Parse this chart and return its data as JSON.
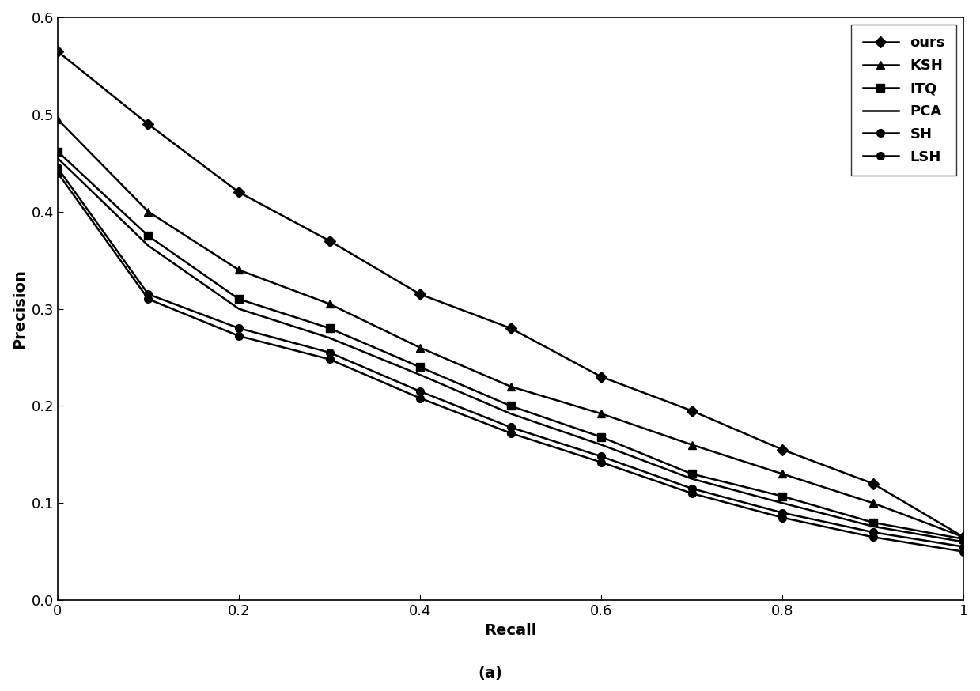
{
  "title": "(a)",
  "xlabel": "Recall",
  "ylabel": "Precision",
  "xlim": [
    0,
    1
  ],
  "ylim": [
    0,
    0.6
  ],
  "series": {
    "ours": {
      "x": [
        0.0,
        0.1,
        0.2,
        0.3,
        0.4,
        0.5,
        0.6,
        0.7,
        0.8,
        0.9,
        1.0
      ],
      "y": [
        0.565,
        0.49,
        0.42,
        0.37,
        0.315,
        0.28,
        0.23,
        0.195,
        0.155,
        0.12,
        0.065
      ],
      "marker": "D",
      "markersize": 7,
      "label": "ours"
    },
    "KSH": {
      "x": [
        0.0,
        0.1,
        0.2,
        0.3,
        0.4,
        0.5,
        0.6,
        0.7,
        0.8,
        0.9,
        1.0
      ],
      "y": [
        0.495,
        0.4,
        0.34,
        0.305,
        0.26,
        0.22,
        0.192,
        0.16,
        0.13,
        0.1,
        0.065
      ],
      "marker": "^",
      "markersize": 7,
      "label": "KSH"
    },
    "ITQ": {
      "x": [
        0.0,
        0.1,
        0.2,
        0.3,
        0.4,
        0.5,
        0.6,
        0.7,
        0.8,
        0.9,
        1.0
      ],
      "y": [
        0.462,
        0.375,
        0.31,
        0.28,
        0.24,
        0.2,
        0.168,
        0.13,
        0.107,
        0.08,
        0.063
      ],
      "marker": "s",
      "markersize": 7,
      "label": "ITQ"
    },
    "PCA": {
      "x": [
        0.0,
        0.1,
        0.2,
        0.3,
        0.4,
        0.5,
        0.6,
        0.7,
        0.8,
        0.9,
        1.0
      ],
      "y": [
        0.455,
        0.365,
        0.3,
        0.27,
        0.232,
        0.192,
        0.16,
        0.125,
        0.1,
        0.076,
        0.06
      ],
      "marker": "None",
      "markersize": 0,
      "label": "PCA"
    },
    "SH": {
      "x": [
        0.0,
        0.1,
        0.2,
        0.3,
        0.4,
        0.5,
        0.6,
        0.7,
        0.8,
        0.9,
        1.0
      ],
      "y": [
        0.445,
        0.315,
        0.28,
        0.255,
        0.215,
        0.178,
        0.148,
        0.115,
        0.09,
        0.07,
        0.055
      ],
      "marker": "o",
      "markersize": 7,
      "label": "SH"
    },
    "LSH": {
      "x": [
        0.0,
        0.1,
        0.2,
        0.3,
        0.4,
        0.5,
        0.6,
        0.7,
        0.8,
        0.9,
        1.0
      ],
      "y": [
        0.44,
        0.31,
        0.272,
        0.248,
        0.208,
        0.172,
        0.142,
        0.11,
        0.085,
        0.065,
        0.05
      ],
      "marker": "o",
      "markersize": 7,
      "label": "LSH"
    }
  },
  "line_color": "#000000",
  "linewidth": 1.8,
  "legend_fontsize": 13,
  "axis_fontsize": 14,
  "title_fontsize": 14,
  "tick_fontsize": 13,
  "yticks": [
    0,
    0.1,
    0.2,
    0.3,
    0.4,
    0.5,
    0.6
  ],
  "xticks": [
    0,
    0.2,
    0.4,
    0.6,
    0.8,
    1.0
  ],
  "xtick_labels": [
    "0",
    "0.2",
    "0.4",
    "0.6",
    "0.8",
    "1"
  ]
}
